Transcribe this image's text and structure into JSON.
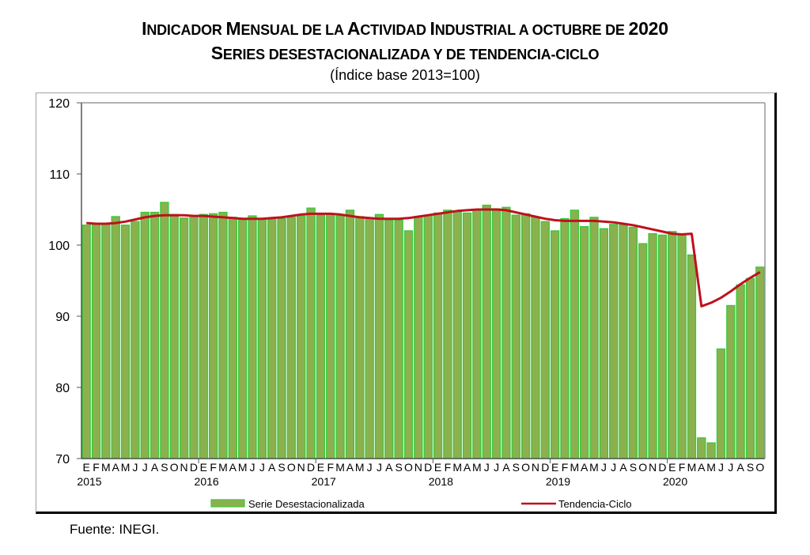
{
  "chart_data": {
    "type": "bar",
    "title": "Indicador Mensual de la Actividad Industrial a octubre de 2020",
    "subtitle": "Series desestacionalizada y de tendencia-ciclo",
    "subtitle2": "(Índice base 2013=100)",
    "xlabel": "",
    "ylabel": "",
    "ylim": [
      70,
      120
    ],
    "yticks": [
      70,
      80,
      90,
      100,
      110,
      120
    ],
    "grid": false,
    "legend_position": "bottom",
    "month_labels": [
      "E",
      "F",
      "M",
      "A",
      "M",
      "J",
      "J",
      "A",
      "S",
      "O",
      "N",
      "D"
    ],
    "years": [
      "2015",
      "2016",
      "2017",
      "2018",
      "2019",
      "2020"
    ],
    "months_count": 70,
    "series": [
      {
        "name": "Serie Desestacionalizada",
        "type": "bar",
        "color": "#8db04f",
        "edge_color": "#3cc83c",
        "values": [
          102.8,
          102.9,
          102.9,
          104.0,
          102.8,
          103.3,
          104.6,
          104.6,
          106.0,
          104.3,
          103.8,
          104.1,
          104.3,
          104.4,
          104.6,
          103.9,
          103.6,
          104.1,
          103.6,
          103.6,
          103.7,
          103.9,
          104.1,
          105.2,
          104.2,
          104.4,
          104.1,
          104.9,
          104.0,
          103.7,
          104.3,
          103.5,
          103.5,
          102.0,
          104.0,
          104.2,
          104.5,
          104.9,
          104.7,
          104.5,
          104.9,
          105.6,
          105.1,
          105.3,
          104.2,
          104.4,
          103.9,
          103.3,
          102.0,
          103.7,
          104.9,
          102.6,
          103.9,
          102.3,
          102.9,
          102.8,
          102.5,
          100.2,
          101.6,
          101.4,
          101.9,
          101.5,
          98.6,
          72.9,
          72.2,
          85.4,
          91.5,
          94.4,
          95.3,
          96.9
        ]
      },
      {
        "name": "Tendencia-Ciclo",
        "type": "line",
        "color": "#c0101c",
        "values": [
          103.1,
          103.0,
          103.0,
          103.1,
          103.3,
          103.6,
          103.9,
          104.1,
          104.2,
          104.2,
          104.2,
          104.1,
          104.1,
          104.0,
          103.9,
          103.8,
          103.7,
          103.7,
          103.7,
          103.8,
          103.9,
          104.1,
          104.3,
          104.4,
          104.4,
          104.4,
          104.3,
          104.1,
          103.9,
          103.8,
          103.7,
          103.7,
          103.7,
          103.8,
          104.0,
          104.2,
          104.4,
          104.6,
          104.8,
          104.9,
          105.0,
          105.0,
          105.0,
          104.9,
          104.6,
          104.3,
          104.0,
          103.7,
          103.5,
          103.4,
          103.4,
          103.4,
          103.4,
          103.3,
          103.2,
          103.0,
          102.8,
          102.5,
          102.2,
          101.9,
          101.6,
          101.5,
          101.6,
          91.4,
          91.9,
          92.6,
          93.5,
          94.5,
          95.4,
          96.2
        ]
      }
    ]
  },
  "header": {
    "title_parts": [
      {
        "big": "I",
        "small": "NDICADOR "
      },
      {
        "big": "M",
        "small": "ENSUAL DE LA "
      },
      {
        "big": "A",
        "small": "CTIVIDAD "
      },
      {
        "big": "I",
        "small": "NDUSTRIAL A OCTUBRE DE "
      },
      {
        "big": "2020",
        "small": ""
      }
    ],
    "subtitle_parts": [
      {
        "big": "S",
        "small": "ERIES DESESTACIONALIZADA Y DE TENDENCIA-CICLO"
      }
    ],
    "base_note": "(Índice base 2013=100)"
  },
  "footer": {
    "source": "Fuente: INEGI."
  }
}
